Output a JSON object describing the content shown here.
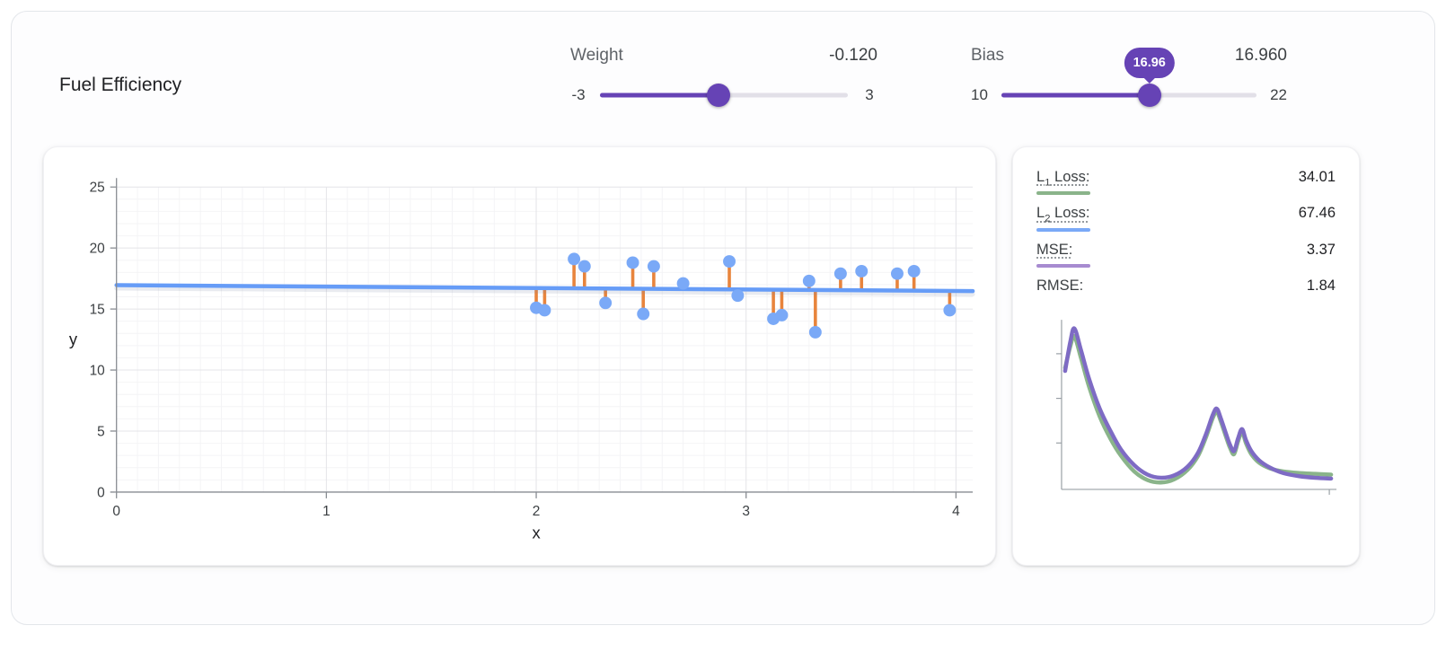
{
  "title": "Fuel Efficiency",
  "controls": {
    "weight": {
      "label": "Weight",
      "value": -0.12,
      "value_display": "-0.120",
      "min": -3,
      "max": 3,
      "min_label": "-3",
      "max_label": "3"
    },
    "bias": {
      "label": "Bias",
      "value": 16.96,
      "value_display": "16.960",
      "min": 10,
      "max": 22,
      "min_label": "10",
      "max_label": "22",
      "tooltip": "16.96"
    }
  },
  "colors": {
    "accent_purple": "#6643b5",
    "point_blue": "#7aa9f7",
    "line_blue": "#669cf7",
    "residual_orange": "#e8843c",
    "l1_green": "#8ab48a",
    "l2_blue": "#7aa9f7",
    "mse_purple": "#a78bd0",
    "curve_purple": "#7e6bc4"
  },
  "loss_panel": {
    "rows": [
      {
        "base": "L",
        "sub": "1",
        "rest": " Loss:",
        "value": "34.01",
        "swatch": "#8ab48a"
      },
      {
        "base": "L",
        "sub": "2",
        "rest": " Loss:",
        "value": "67.46",
        "swatch": "#7aa9f7"
      },
      {
        "base": "MSE:",
        "sub": "",
        "rest": "",
        "value": "3.37",
        "swatch": "#a78bd0"
      },
      {
        "base": "RMSE:",
        "sub": "",
        "rest": "",
        "value": "1.84",
        "swatch": null
      }
    ]
  },
  "chart_data": [
    {
      "type": "scatter",
      "title": "",
      "xlabel": "x",
      "ylabel": "y",
      "xlim": [
        0,
        4.08
      ],
      "ylim": [
        0,
        25
      ],
      "xticks": [
        0,
        1,
        2,
        3,
        4
      ],
      "yticks": [
        0,
        5,
        10,
        15,
        20,
        25
      ],
      "grid": true,
      "points": [
        [
          2.0,
          15.1
        ],
        [
          2.04,
          14.9
        ],
        [
          2.18,
          19.1
        ],
        [
          2.23,
          18.5
        ],
        [
          2.33,
          15.5
        ],
        [
          2.46,
          18.8
        ],
        [
          2.51,
          14.6
        ],
        [
          2.56,
          18.5
        ],
        [
          2.7,
          17.1
        ],
        [
          2.92,
          18.9
        ],
        [
          2.96,
          16.1
        ],
        [
          3.13,
          14.2
        ],
        [
          3.17,
          14.5
        ],
        [
          3.3,
          17.3
        ],
        [
          3.33,
          13.1
        ],
        [
          3.45,
          17.9
        ],
        [
          3.55,
          18.1
        ],
        [
          3.72,
          17.9
        ],
        [
          3.8,
          18.1
        ],
        [
          3.97,
          14.9
        ]
      ],
      "model_line": {
        "weight": -0.12,
        "bias": 16.96
      },
      "show_residuals": true,
      "colors": {
        "point": "#7aa9f7",
        "line": "#669cf7",
        "residual": "#e8843c",
        "grid_major": "#e4e4e8",
        "grid_minor": "#f4f4f6",
        "axis": "#888c92",
        "tick_label": "#3c4043"
      }
    },
    {
      "type": "line",
      "name": "loss-curves",
      "x_range": [
        0,
        100
      ],
      "y_range": [
        0,
        100
      ],
      "axis_color": "#9aa0a6",
      "series": [
        {
          "name": "L1 Loss",
          "color": "#8ab48a",
          "points": [
            [
              0,
              74
            ],
            [
              2,
              88
            ],
            [
              3.5,
              94
            ],
            [
              6,
              80
            ],
            [
              9,
              62
            ],
            [
              13,
              43
            ],
            [
              17,
              29
            ],
            [
              21,
              18
            ],
            [
              26,
              8
            ],
            [
              31,
              2.5
            ],
            [
              36,
              1
            ],
            [
              41,
              3
            ],
            [
              46,
              9
            ],
            [
              50,
              18
            ],
            [
              53,
              30
            ],
            [
              55.5,
              42
            ],
            [
              57,
              46
            ],
            [
              58.5,
              40
            ],
            [
              60.5,
              30
            ],
            [
              62,
              23
            ],
            [
              63.5,
              19
            ],
            [
              65,
              27
            ],
            [
              66.5,
              33
            ],
            [
              68,
              26
            ],
            [
              70,
              19
            ],
            [
              73,
              13.5
            ],
            [
              77,
              10
            ],
            [
              82,
              8
            ],
            [
              88,
              7
            ],
            [
              94,
              6.5
            ],
            [
              100,
              6
            ]
          ]
        },
        {
          "name": "MSE",
          "color": "#7e6bc4",
          "points": [
            [
              0,
              72
            ],
            [
              2,
              91
            ],
            [
              3.5,
              99
            ],
            [
              6,
              85
            ],
            [
              9,
              67
            ],
            [
              13,
              48
            ],
            [
              17,
              34
            ],
            [
              21,
              22
            ],
            [
              26,
              12
            ],
            [
              31,
              6
            ],
            [
              36,
              4
            ],
            [
              41,
              5.5
            ],
            [
              46,
              11
            ],
            [
              50,
              20
            ],
            [
              53,
              32
            ],
            [
              55.5,
              44
            ],
            [
              57,
              48
            ],
            [
              58.5,
              42
            ],
            [
              60.5,
              32
            ],
            [
              62,
              25
            ],
            [
              63.5,
              21
            ],
            [
              65,
              29
            ],
            [
              66.5,
              35
            ],
            [
              68,
              28
            ],
            [
              70,
              21
            ],
            [
              73,
              15
            ],
            [
              77,
              10.5
            ],
            [
              82,
              7
            ],
            [
              88,
              5
            ],
            [
              94,
              4
            ],
            [
              100,
              3.5
            ]
          ]
        }
      ]
    }
  ]
}
